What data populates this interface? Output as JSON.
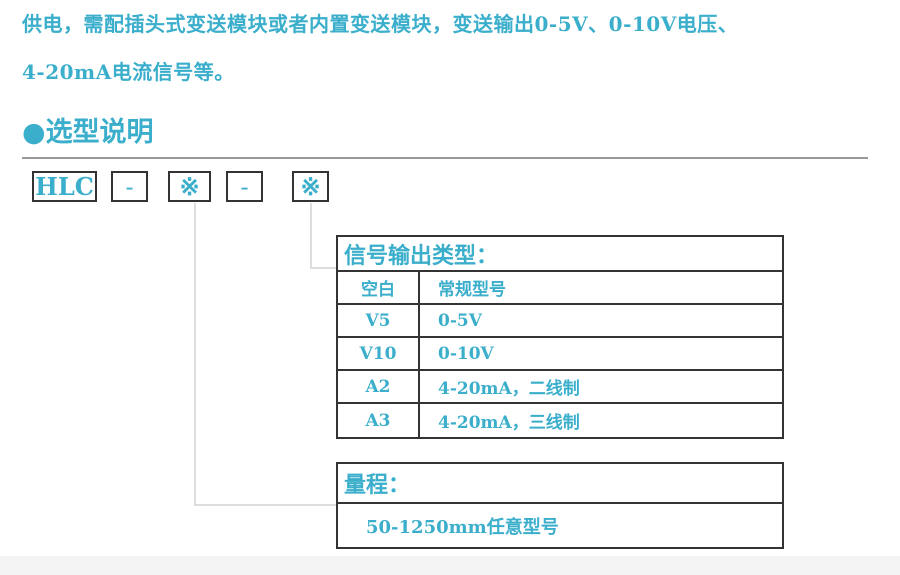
{
  "intro": {
    "line1": "供电，需配插头式变送模块或者内置变送模块，变送输出0-5V、0-10V电压、",
    "line2": "4-20mA电流信号等。"
  },
  "section": {
    "bullet": "●",
    "title": "选型说明"
  },
  "code": [
    "HLC",
    "-",
    "※",
    "-",
    "※"
  ],
  "signal_table": {
    "title": "信号输出类型：",
    "rows": [
      [
        "空白",
        "常规型号"
      ],
      [
        "V5",
        "0-5V"
      ],
      [
        "V10",
        "0-10V"
      ],
      [
        "A2",
        "4-20mA，二线制"
      ],
      [
        "A3",
        "4-20mA，三线制"
      ]
    ]
  },
  "range_table": {
    "title": "量程：",
    "value": "50-1250mm任意型号"
  },
  "colors": {
    "accent": "#3aaecb",
    "border": "#333333"
  }
}
